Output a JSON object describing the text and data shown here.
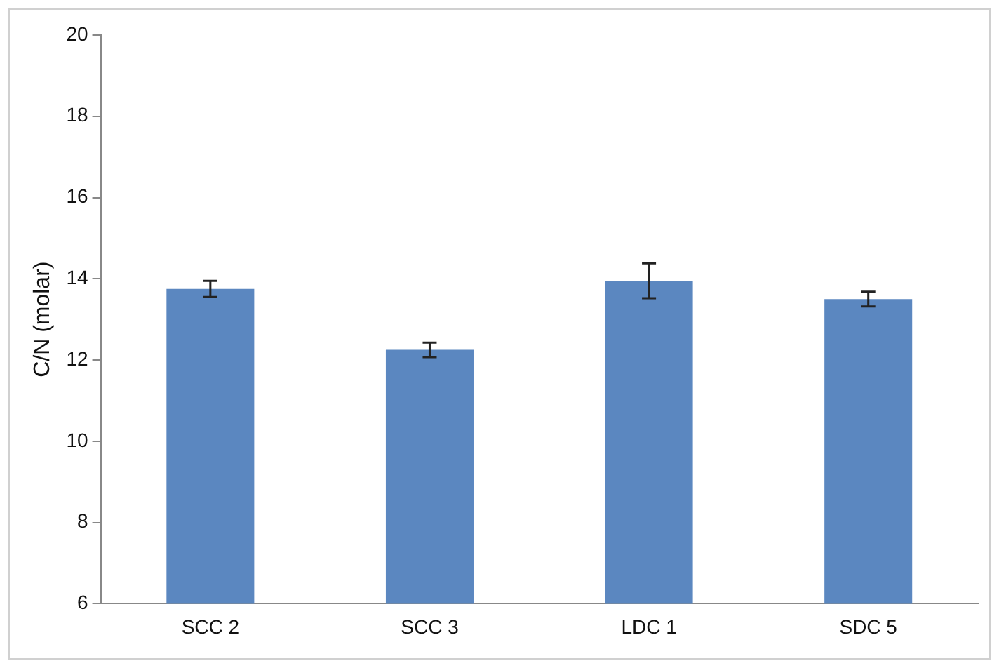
{
  "chart_data": {
    "type": "bar",
    "ylabel": "C/N (molar)",
    "categories": [
      "SCC 2",
      "SCC 3",
      "LDC 1",
      "SDC 5"
    ],
    "values": [
      13.75,
      12.25,
      13.95,
      13.5
    ],
    "errors": [
      0.2,
      0.18,
      0.43,
      0.18
    ],
    "color": "#5b87c0",
    "ylim": [
      6,
      20
    ],
    "yticks": [
      6,
      8,
      10,
      12,
      14,
      16,
      18,
      20
    ],
    "grid": false,
    "legend": false
  }
}
